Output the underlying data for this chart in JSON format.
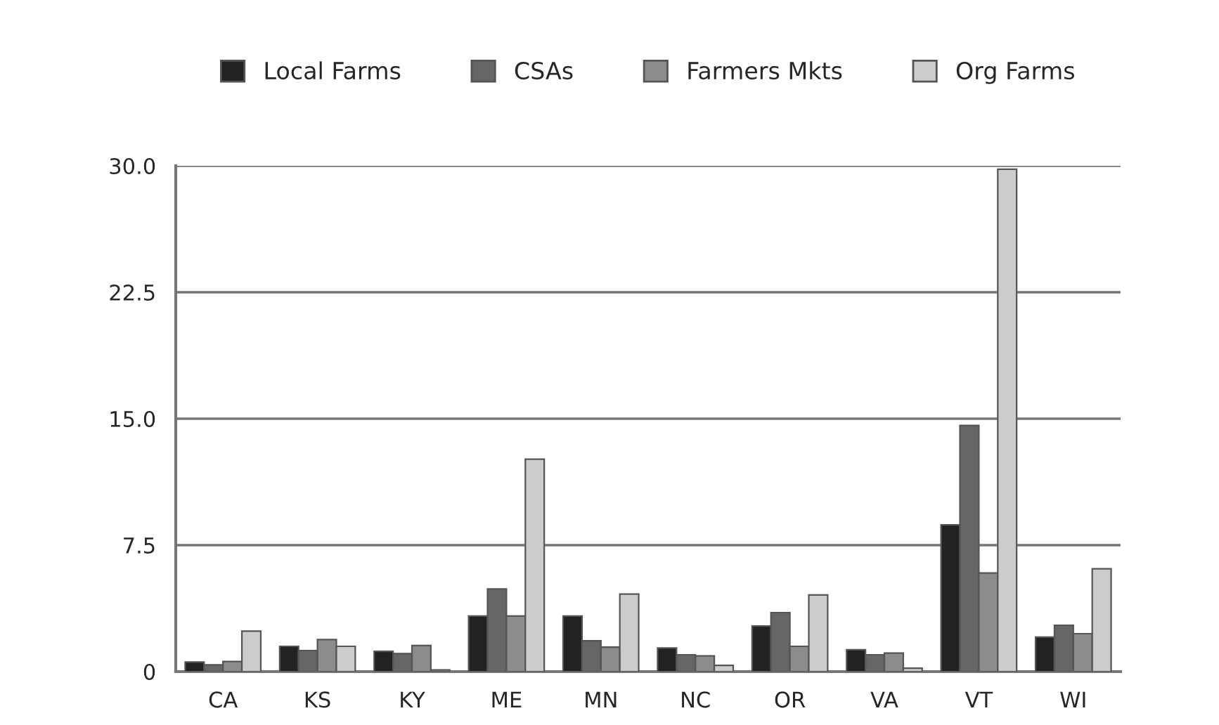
{
  "chart_data": {
    "type": "bar",
    "categories": [
      "CA",
      "KS",
      "KY",
      "ME",
      "MN",
      "NC",
      "OR",
      "VA",
      "VT",
      "WI"
    ],
    "series": [
      {
        "name": "Local Farms",
        "color": "#222222",
        "values": [
          0.57,
          1.5,
          1.2,
          3.3,
          3.3,
          1.4,
          2.7,
          1.3,
          8.7,
          2.05
        ]
      },
      {
        "name": "CSAs",
        "color": "#666666",
        "values": [
          0.4,
          1.25,
          1.07,
          4.9,
          1.83,
          1.0,
          3.5,
          1.0,
          14.6,
          2.75
        ]
      },
      {
        "name": "Farmers Mkts",
        "color": "#8c8c8c",
        "values": [
          0.6,
          1.9,
          1.55,
          3.3,
          1.45,
          0.93,
          1.5,
          1.1,
          5.85,
          2.25
        ]
      },
      {
        "name": "Org Farms",
        "color": "#cccccc",
        "values": [
          2.4,
          1.5,
          0.1,
          12.6,
          4.6,
          0.37,
          4.55,
          0.2,
          29.8,
          6.1
        ]
      }
    ],
    "ylim": [
      0,
      30
    ],
    "yticks": [
      {
        "value": 0,
        "label": "0"
      },
      {
        "value": 7.5,
        "label": "7.5"
      },
      {
        "value": 15,
        "label": "15.0"
      },
      {
        "value": 22.5,
        "label": "22.5"
      },
      {
        "value": 30,
        "label": "30.0"
      }
    ],
    "grid": "y",
    "legend": "top"
  }
}
